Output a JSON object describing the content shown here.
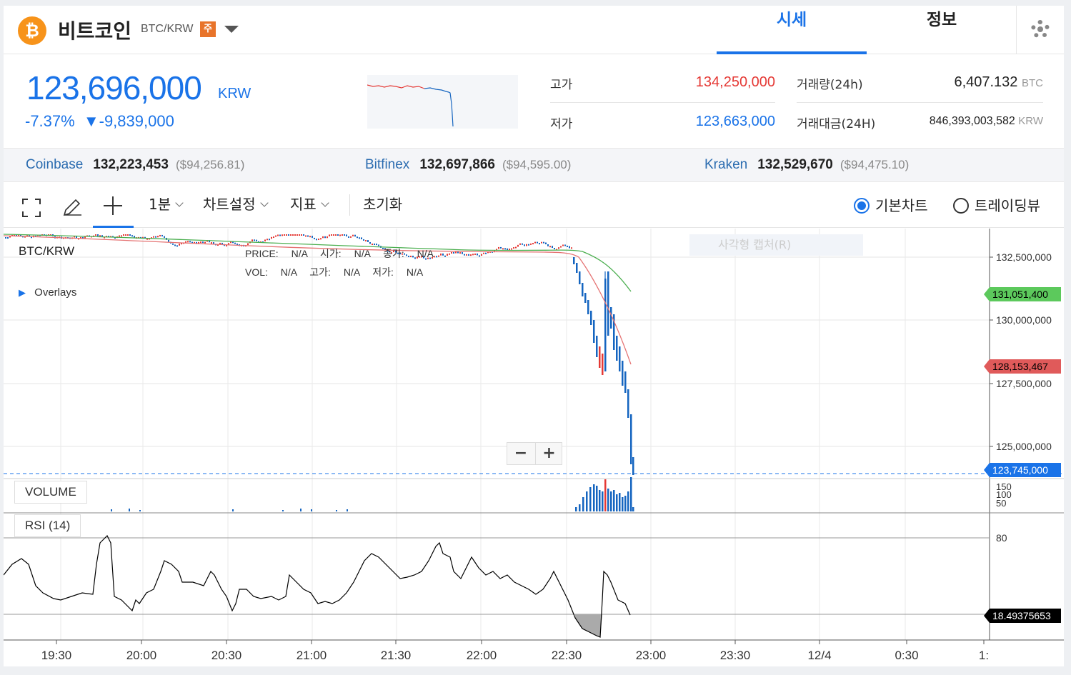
{
  "coin": {
    "name": "비트코인",
    "pair": "BTC/KRW",
    "warning_badge": "주",
    "logo_symbol": "₿",
    "logo_color": "#f7931a"
  },
  "tabs": [
    {
      "label": "시세",
      "active": true
    },
    {
      "label": "정보",
      "active": false
    }
  ],
  "price": {
    "current": "123,696,000",
    "unit": "KRW",
    "change_pct": "-7.37%",
    "change_arrow": "▼",
    "change_amount": "-9,839,000",
    "color": "#1a73e8"
  },
  "stats": {
    "high_label": "고가",
    "high_value": "134,250,000",
    "low_label": "저가",
    "low_value": "123,663,000",
    "volume_label": "거래량(24h)",
    "volume_value": "6,407.132",
    "volume_unit": "BTC",
    "amount_label": "거래대금(24H)",
    "amount_value": "846,393,003,582",
    "amount_unit": "KRW"
  },
  "exchanges": [
    {
      "name": "Coinbase",
      "price": "132,223,453",
      "usd": "($94,256.81)"
    },
    {
      "name": "Bitfinex",
      "price": "132,697,866",
      "usd": "($94,595.00)"
    },
    {
      "name": "Kraken",
      "price": "132,529,670",
      "usd": "($94,475.10)"
    }
  ],
  "toolbar": {
    "interval": "1분",
    "chart_settings": "차트설정",
    "indicators": "지표",
    "reset": "초기화",
    "radio_basic": "기본차트",
    "radio_tradingview": "트레이딩뷰"
  },
  "chart": {
    "symbol": "BTC/KRW",
    "overlays_label": "Overlays",
    "legend_row1": [
      "PRICE:",
      "N/A",
      "시가:",
      "N/A",
      "종가:",
      "N/A"
    ],
    "legend_row2": [
      "VOL:",
      "N/A",
      "고가:",
      "N/A",
      "저가:",
      "N/A"
    ],
    "capture_placeholder": "사각형 캡처(R)",
    "zoom_out": "−",
    "zoom_in": "+",
    "volume_label": "VOLUME",
    "rsi_label": "RSI (14)",
    "price_ticks": [
      "132,500,000",
      "130,000,000",
      "127,500,000",
      "125,000,000"
    ],
    "volume_ticks": [
      "150",
      "100",
      "50"
    ],
    "rsi_ticks": [
      "80"
    ],
    "time_ticks": [
      "19:30",
      "20:00",
      "20:30",
      "21:00",
      "21:30",
      "22:00",
      "22:30",
      "23:00",
      "23:30",
      "12/4",
      "0:30",
      "1:"
    ],
    "ma_green_value": "131,051,400",
    "ma_red_value": "128,153,467",
    "last_price_value": "123,745,000",
    "rsi_value": "18.49375653",
    "colors": {
      "up": "#e53935",
      "down": "#1565c0",
      "ma_long": "#4caf50",
      "ma_short": "#e57373",
      "rsi": "#000000"
    }
  }
}
